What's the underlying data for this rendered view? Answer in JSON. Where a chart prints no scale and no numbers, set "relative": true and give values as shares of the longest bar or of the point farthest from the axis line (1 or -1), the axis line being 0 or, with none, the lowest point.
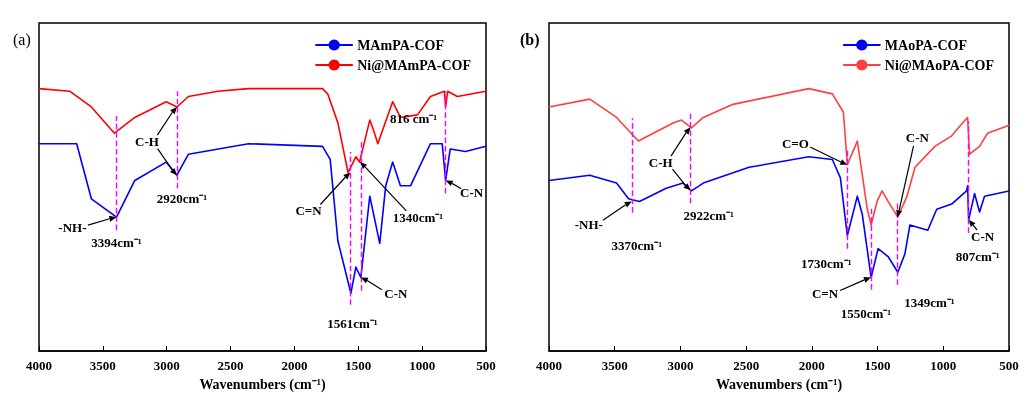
{
  "chart_data": [
    {
      "type": "line",
      "title": "(a)",
      "xlabel": "Wavenumbers (cm⁻¹)",
      "relative": true,
      "xlim": [
        4000,
        500
      ],
      "xticks": [
        4000,
        3500,
        3000,
        2500,
        2000,
        1500,
        1000,
        500
      ],
      "tick_labels": "x",
      "legend": "top right",
      "marker": "none",
      "line_style": "solid",
      "x": [
        4000,
        3760,
        3705,
        3590,
        3409,
        3393,
        3250,
        3004,
        2920,
        2830,
        2600,
        2360,
        1780,
        1740,
        1720,
        1660,
        1580,
        1558,
        1519,
        1490,
        1480,
        1410,
        1386,
        1347,
        1332,
        1285,
        1231,
        1170,
        1090,
        1036,
        935,
        843,
        826,
        816,
        800,
        780,
        725,
        660,
        500
      ],
      "series": [
        {
          "name": "MAmPA-COF",
          "color": "#0000ff",
          "values": [
            0.79,
            0.79,
            0.79,
            0.58,
            null,
            0.51,
            0.65,
            0.72,
            0.67,
            0.75,
            null,
            0.79,
            0.78,
            null,
            0.73,
            0.42,
            null,
            0.22,
            0.32,
            null,
            0.28,
            0.59,
            null,
            null,
            0.41,
            0.63,
            0.72,
            0.63,
            0.63,
            null,
            0.79,
            0.79,
            null,
            0.65,
            null,
            0.77,
            null,
            0.76,
            0.78
          ]
        },
        {
          "name": "Ni@MAmPA-COF",
          "color": "#ff0000",
          "values": [
            1.0,
            0.99,
            null,
            0.93,
            0.83,
            null,
            0.89,
            0.95,
            0.93,
            0.97,
            0.99,
            1.0,
            1.0,
            0.98,
            null,
            0.87,
            0.68,
            null,
            0.74,
            0.72,
            null,
            0.88,
            0.85,
            0.79,
            null,
            null,
            0.95,
            0.89,
            null,
            0.9,
            0.97,
            null,
            0.99,
            0.93,
            0.99,
            null,
            0.97,
            null,
            0.99
          ]
        }
      ],
      "ref_lines": [
        {
          "axis": "x",
          "value": 3394,
          "color": "#ff00ff",
          "line_style": "dashed"
        },
        {
          "axis": "x",
          "value": 2920,
          "color": "#ff00ff",
          "line_style": "dashed"
        },
        {
          "axis": "x",
          "value": 1561,
          "color": "#ff00ff",
          "line_style": "dashed"
        },
        {
          "axis": "x",
          "value": 1480,
          "color": "#ff00ff",
          "line_style": "dashed"
        },
        {
          "axis": "x",
          "value": 816,
          "color": "#ff00ff",
          "line_style": "dashed"
        }
      ],
      "annotations": [
        {
          "text": "-NH-",
          "x": 3394,
          "y": 0.51
        },
        {
          "text": "3394cm⁻¹",
          "x": 3394,
          "y": 0.51
        },
        {
          "text": "C-H",
          "x": 2920,
          "y": 0.93
        },
        {
          "text": "2920cm⁻¹",
          "x": 2920,
          "y": 0.67
        },
        {
          "text": "C=N",
          "x": 1561,
          "y": 0.68
        },
        {
          "text": "1340cm⁻¹",
          "x": 1487,
          "y": 0.72
        },
        {
          "text": "C-N",
          "x": 1480,
          "y": 0.28
        },
        {
          "text": "1561cm⁻¹",
          "x": 1561,
          "y": 0.22
        },
        {
          "text": "816 cm⁻¹",
          "x": 816,
          "y": 0.93
        },
        {
          "text": "C-N",
          "x": 816,
          "y": 0.65
        }
      ]
    },
    {
      "type": "line",
      "title": "(b)",
      "xlabel": "Wavenumbers (cm⁻¹)",
      "relative": true,
      "xlim": [
        4000,
        500
      ],
      "xticks": [
        4000,
        3500,
        3000,
        2500,
        2000,
        1500,
        1000,
        500
      ],
      "tick_labels": "x",
      "legend": "top right",
      "marker": "none",
      "line_style": "solid",
      "series": [
        {
          "name": "MAoPA-COF",
          "color": "#0000ff",
          "x": [
            4000,
            3690,
            3486,
            3395,
            3312,
            3108,
            2980,
            2916,
            2826,
            2478,
            2024,
            1844,
            1783,
            1730,
            1654,
            1616,
            1549,
            1496,
            1420,
            1346,
            1292,
            1254,
            1118,
            1050,
            936,
            823,
            815,
            807,
            762,
            724,
            686,
            500
          ],
          "values": [
            0.65,
            0.67,
            0.64,
            0.58,
            0.57,
            0.62,
            0.64,
            0.61,
            0.64,
            0.7,
            0.74,
            0.73,
            0.66,
            0.44,
            0.59,
            0.52,
            0.28,
            0.39,
            0.36,
            0.3,
            0.37,
            0.48,
            0.46,
            0.54,
            0.56,
            0.61,
            0.63,
            0.5,
            0.6,
            0.53,
            0.59,
            0.61
          ]
        },
        {
          "name": "Ni@MAoPA-COF",
          "color": "#ff4040",
          "x": [
            4000,
            3690,
            3486,
            3320,
            3052,
            2992,
            2916,
            2826,
            2600,
            2024,
            1844,
            1760,
            1730,
            1654,
            1578,
            1549,
            1504,
            1466,
            1420,
            1346,
            1276,
            1215,
            1064,
            936,
            852,
            815,
            800,
            724,
            663,
            500
          ],
          "values": [
            0.93,
            0.96,
            0.89,
            0.8,
            0.87,
            0.88,
            0.85,
            0.89,
            0.94,
            1.0,
            0.98,
            0.91,
            0.71,
            0.8,
            0.54,
            0.48,
            0.57,
            0.61,
            0.57,
            0.51,
            0.59,
            0.7,
            0.78,
            0.82,
            0.87,
            0.89,
            0.75,
            0.78,
            0.83,
            0.86
          ]
        }
      ],
      "ref_lines": [
        {
          "axis": "x",
          "value": 3370,
          "color": "#ff00ff",
          "line_style": "dashed"
        },
        {
          "axis": "x",
          "value": 2922,
          "color": "#ff00ff",
          "line_style": "dashed"
        },
        {
          "axis": "x",
          "value": 1730,
          "color": "#ff00ff",
          "line_style": "dashed"
        },
        {
          "axis": "x",
          "value": 1550,
          "color": "#ff00ff",
          "line_style": "dashed"
        },
        {
          "axis": "x",
          "value": 1349,
          "color": "#ff00ff",
          "line_style": "dashed"
        },
        {
          "axis": "x",
          "value": 807,
          "color": "#ff00ff",
          "line_style": "dashed"
        }
      ],
      "annotations": [
        {
          "text": "-NH-",
          "x": 3370,
          "y": 0.57
        },
        {
          "text": "3370cm⁻¹",
          "x": 3370,
          "y": 0.57
        },
        {
          "text": "C-H",
          "x": 2922,
          "y": 0.85
        },
        {
          "text": "2922cm⁻¹",
          "x": 2922,
          "y": 0.61
        },
        {
          "text": "C=O",
          "x": 1730,
          "y": 0.71
        },
        {
          "text": "1730cm⁻¹",
          "x": 1730,
          "y": 0.44
        },
        {
          "text": "C=N",
          "x": 1550,
          "y": 0.28
        },
        {
          "text": "1550cm⁻¹",
          "x": 1550,
          "y": 0.28
        },
        {
          "text": "C-N",
          "x": 1349,
          "y": 0.51
        },
        {
          "text": "1349cm⁻¹",
          "x": 1349,
          "y": 0.3
        },
        {
          "text": "C-N",
          "x": 807,
          "y": 0.5
        },
        {
          "text": "807cm⁻¹",
          "x": 807,
          "y": 0.5
        }
      ]
    }
  ]
}
